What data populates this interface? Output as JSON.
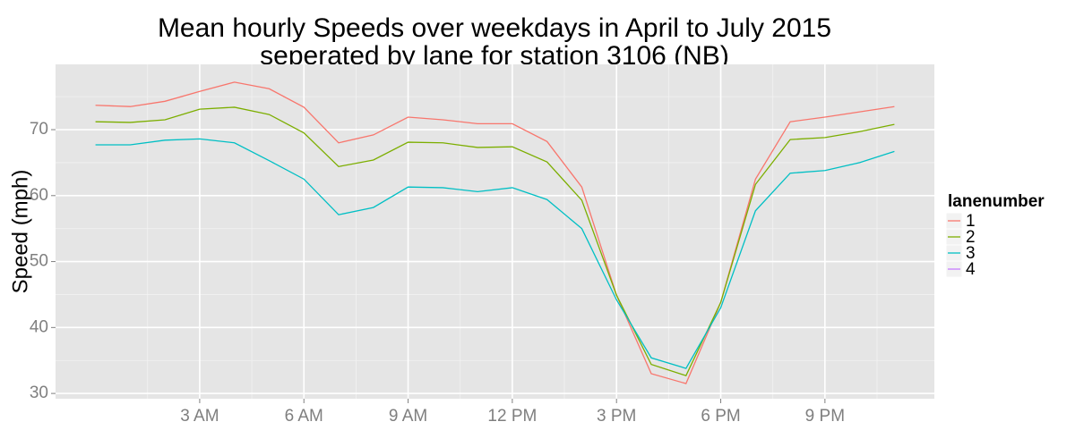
{
  "chart_data": {
    "type": "line",
    "title": [
      "Mean hourly Speeds over weekdays in April to July 2015",
      "seperated by lane for station 3106 (NB)"
    ],
    "y_label": "Speed (mph)",
    "legend_title": "lanenumber",
    "legend": "right",
    "grid": true,
    "x": [
      0,
      1,
      2,
      3,
      4,
      5,
      6,
      7,
      8,
      9,
      10,
      11,
      12,
      13,
      14,
      15,
      16,
      17,
      18,
      19,
      20,
      21,
      22,
      23
    ],
    "xlim": [
      -1.15,
      24.15
    ],
    "xticks": [
      {
        "value": 3,
        "label": "3 AM"
      },
      {
        "value": 6,
        "label": "6 AM"
      },
      {
        "value": 9,
        "label": "9 AM"
      },
      {
        "value": 12,
        "label": "12 PM"
      },
      {
        "value": 15,
        "label": "3 PM"
      },
      {
        "value": 18,
        "label": "6 PM"
      },
      {
        "value": 21,
        "label": "9 PM"
      }
    ],
    "ylim": [
      29.2,
      79.9
    ],
    "yticks": [
      30,
      40,
      50,
      60,
      70
    ],
    "series": [
      {
        "name": "1",
        "color": "#F8766D",
        "values": [
          73.7,
          73.5,
          74.3,
          75.8,
          77.2,
          76.2,
          73.4,
          68.0,
          69.2,
          71.9,
          71.5,
          70.9,
          70.9,
          68.2,
          61.3,
          44.9,
          33.0,
          31.5,
          43.8,
          62.5,
          71.2,
          71.9,
          72.7,
          73.5
        ]
      },
      {
        "name": "2",
        "color": "#7CAE00",
        "values": [
          71.2,
          71.1,
          71.5,
          73.1,
          73.4,
          72.3,
          69.5,
          64.4,
          65.4,
          68.1,
          68.0,
          67.3,
          67.4,
          65.1,
          59.3,
          44.9,
          34.4,
          32.7,
          43.8,
          61.7,
          68.5,
          68.8,
          69.7,
          70.8
        ]
      },
      {
        "name": "3",
        "color": "#00BFC4",
        "values": [
          67.7,
          67.7,
          68.4,
          68.6,
          68.0,
          65.3,
          62.5,
          57.1,
          58.2,
          61.3,
          61.2,
          60.6,
          61.2,
          59.4,
          55.0,
          44.2,
          35.4,
          33.8,
          43.0,
          57.7,
          63.4,
          63.8,
          65.0,
          66.7
        ]
      },
      {
        "name": "4",
        "color": "#C77CFF",
        "values": [
          null,
          null,
          null,
          null,
          null,
          null,
          null,
          null,
          null,
          null,
          null,
          null,
          null,
          null,
          null,
          null,
          null,
          null,
          null,
          null,
          null,
          null,
          null,
          null
        ]
      }
    ]
  }
}
